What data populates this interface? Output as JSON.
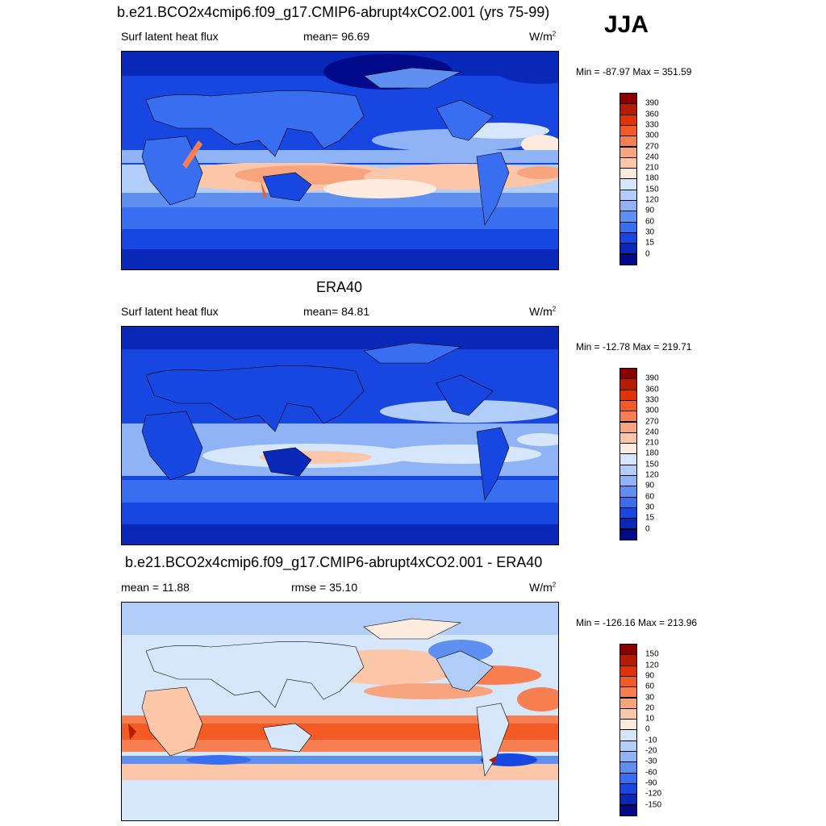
{
  "season": "JJA",
  "panels": [
    {
      "title": "b.e21.BCO2x4cmip6.f09_g17.CMIP6-abrupt4xCO2.001 (yrs 75-99)",
      "left_label": "Surf latent heat flux",
      "center_label": "mean=  96.69",
      "units": "W/m",
      "units_sup": "2",
      "minmax": "Min = -87.97 Max = 351.59",
      "colorbar_labels": [
        "390",
        "360",
        "330",
        "300",
        "270",
        "240",
        "210",
        "180",
        "150",
        "120",
        "90",
        "60",
        "30",
        "15",
        "0"
      ]
    },
    {
      "title": "ERA40",
      "left_label": "Surf latent heat flux",
      "center_label": "mean=  84.81",
      "units": "W/m",
      "units_sup": "2",
      "minmax": "Min = -12.78 Max = 219.71",
      "colorbar_labels": [
        "390",
        "360",
        "330",
        "300",
        "270",
        "240",
        "210",
        "180",
        "150",
        "120",
        "90",
        "60",
        "30",
        "15",
        "0"
      ]
    },
    {
      "title": "b.e21.BCO2x4cmip6.f09_g17.CMIP6-abrupt4xCO2.001 - ERA40",
      "left_label": "mean =  11.88",
      "center_label": "rmse =  35.10",
      "units": "W/m",
      "units_sup": "2",
      "minmax": "Min = -126.16 Max = 213.96",
      "colorbar_labels": [
        "150",
        "120",
        "90",
        "60",
        "30",
        "20",
        "10",
        "0",
        "-10",
        "-20",
        "-30",
        "-60",
        "-90",
        "-120",
        "-150"
      ]
    }
  ],
  "colors": {
    "abs_scale": [
      "#8b0000",
      "#b81c00",
      "#e03205",
      "#f45a24",
      "#f77f52",
      "#f8a57f",
      "#fbc7a8",
      "#fdebe0",
      "#d6e6fb",
      "#b1cdf9",
      "#8fb3f5",
      "#5f8ff0",
      "#3a6ef0",
      "#1846e0",
      "#0a28b8",
      "#000a8a"
    ],
    "diff_scale": [
      "#8b0000",
      "#b81c00",
      "#e03205",
      "#f45a24",
      "#f77f52",
      "#f8a57f",
      "#fbc7a8",
      "#fdebe0",
      "#d6e6fb",
      "#b1cdf9",
      "#8fb3f5",
      "#5f8ff0",
      "#3a6ef0",
      "#1846e0",
      "#0a28b8",
      "#000a8a"
    ]
  }
}
